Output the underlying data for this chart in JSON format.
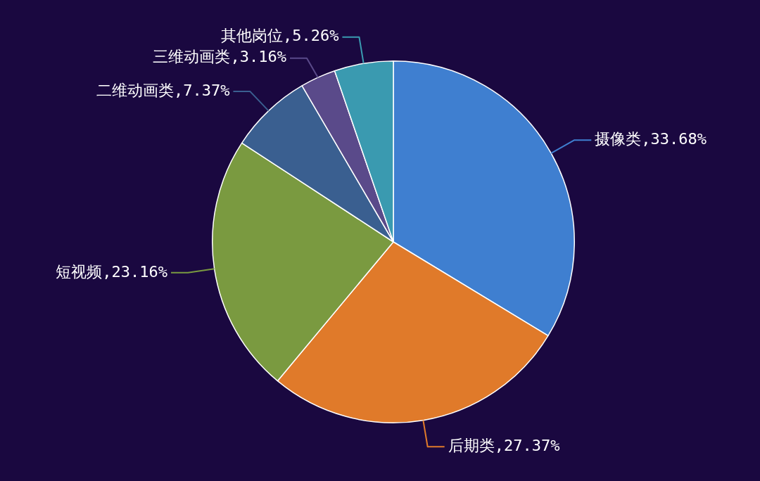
{
  "chart_data": {
    "type": "pie",
    "categories": [
      "摄像类",
      "后期类",
      "短视频",
      "二维动画类",
      "三维动画类",
      "其他岗位"
    ],
    "values": [
      33.68,
      27.37,
      23.16,
      7.37,
      3.16,
      5.26
    ],
    "value_labels": [
      "33.68%",
      "27.37%",
      "23.16%",
      "7.37%",
      "3.16%",
      "5.26%"
    ],
    "colors": [
      "#3f7fd0",
      "#e07a2a",
      "#7a9a40",
      "#3a5f90",
      "#5a4a8a",
      "#3a9ab0"
    ],
    "legend": false
  }
}
